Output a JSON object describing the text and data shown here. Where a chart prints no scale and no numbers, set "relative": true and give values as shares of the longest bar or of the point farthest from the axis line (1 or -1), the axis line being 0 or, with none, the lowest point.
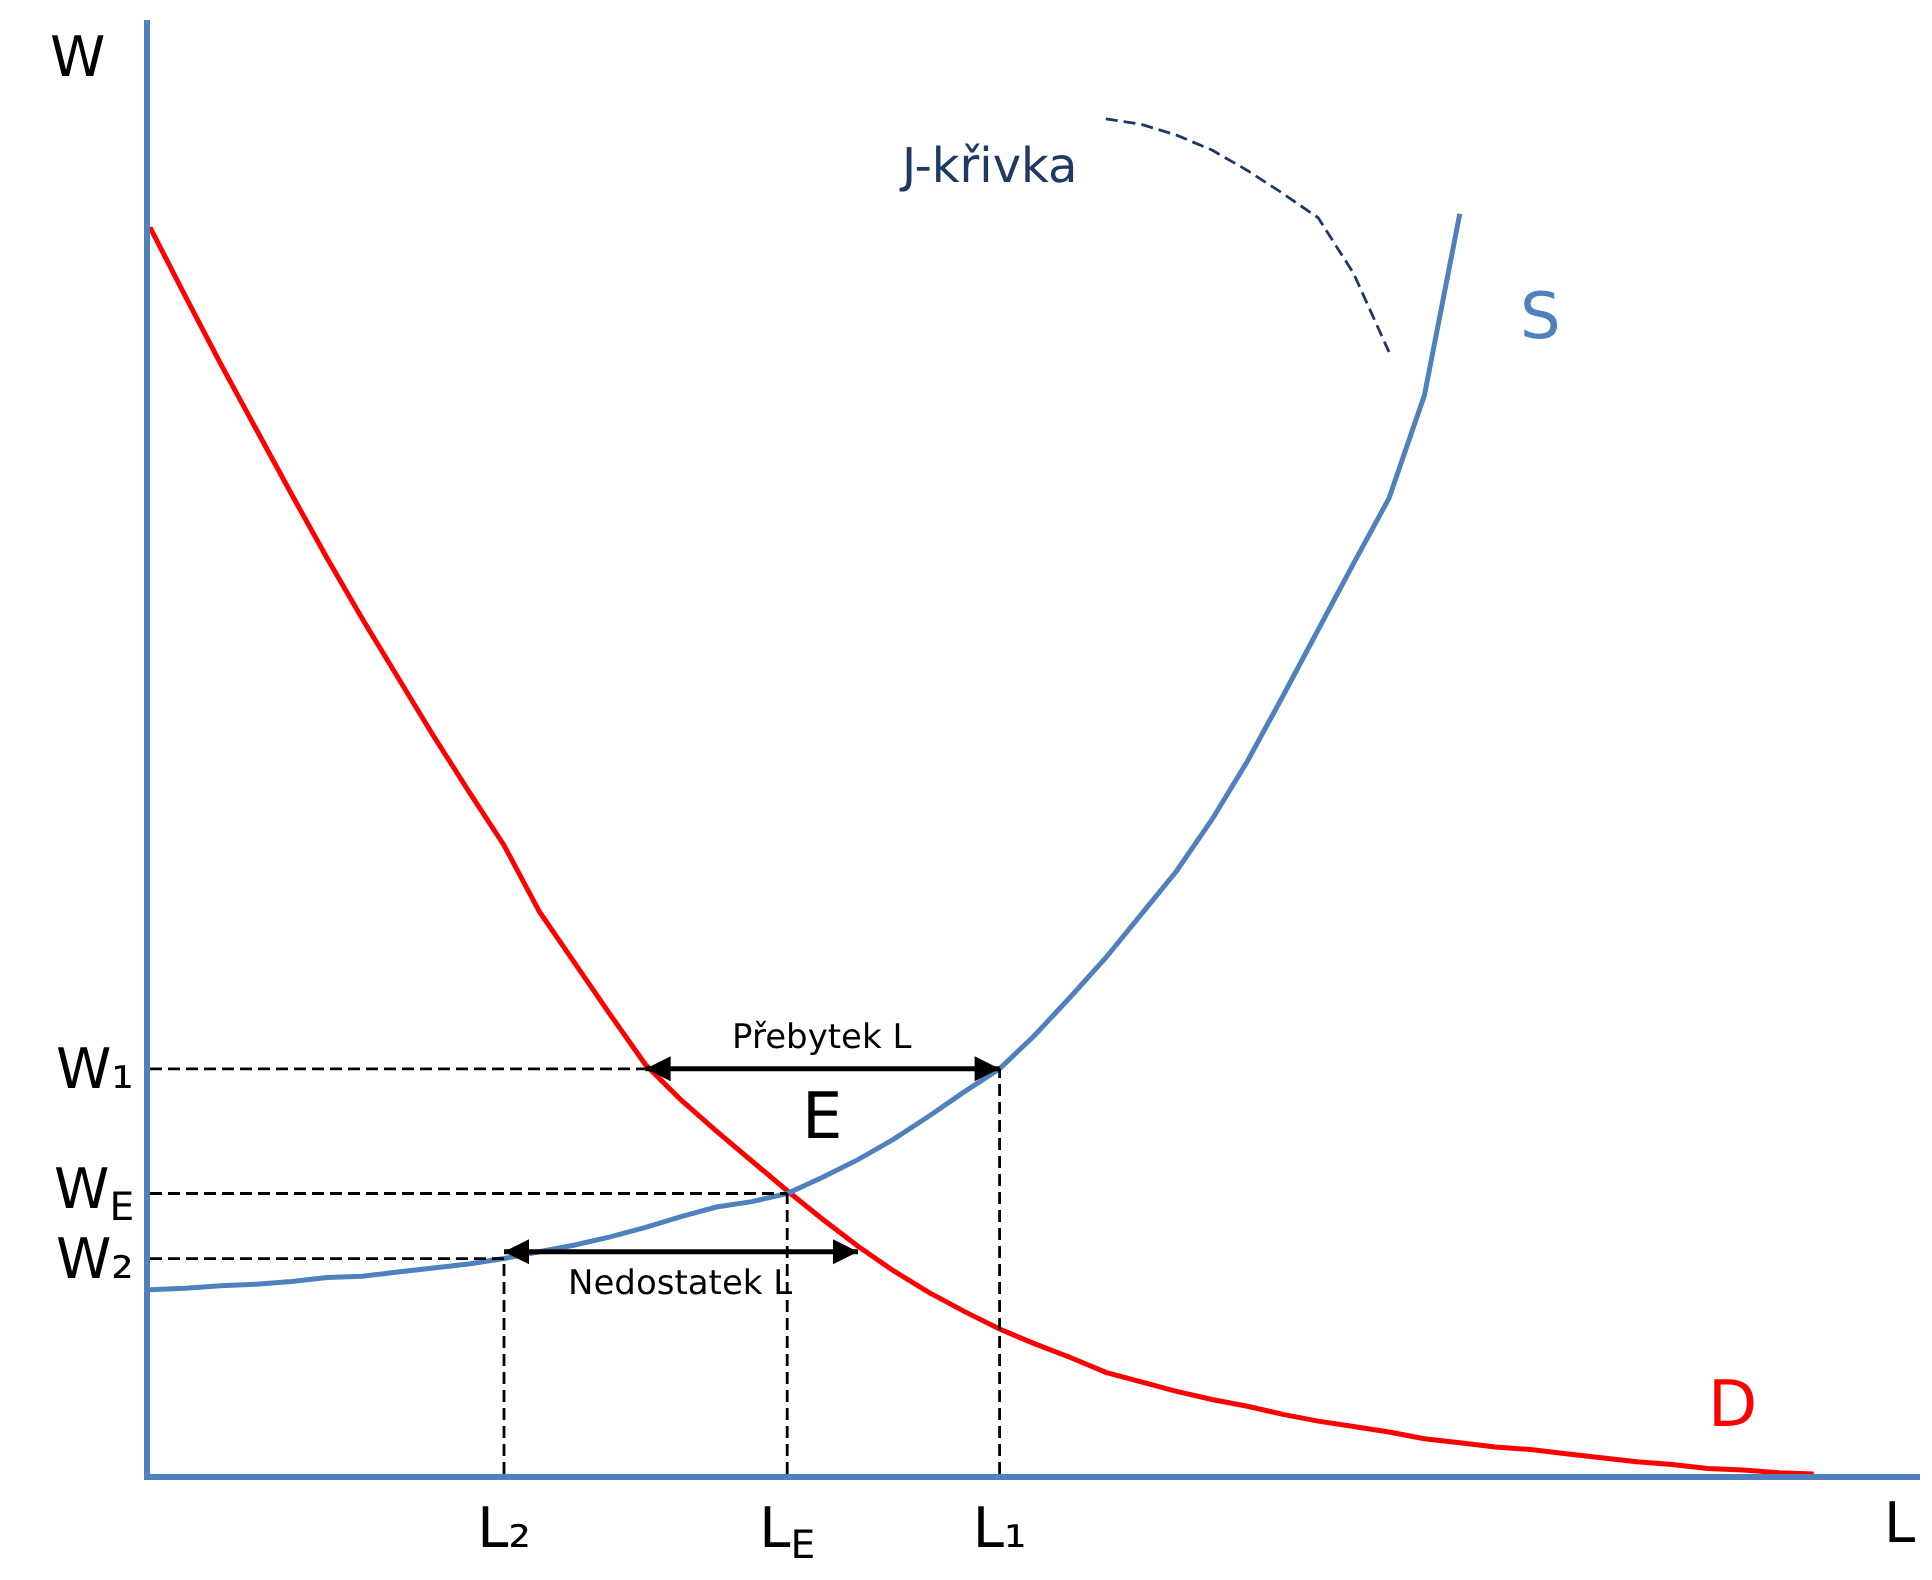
{
  "chart_data": {
    "type": "line",
    "relative": true,
    "xlabel": "L",
    "ylabel": "W",
    "legend": false,
    "categories": [
      null,
      null,
      null,
      null,
      null,
      null,
      null,
      null,
      null,
      null,
      "L₂",
      null,
      null,
      null,
      null,
      null,
      null,
      null,
      "L$_{E}$",
      null,
      null,
      null,
      null,
      null,
      "L₁",
      null,
      null,
      null,
      null,
      null,
      null,
      null,
      null,
      null,
      null,
      null,
      null,
      null,
      null,
      null,
      null,
      null,
      null,
      null,
      null,
      null,
      null,
      null,
      null,
      null,
      null
    ],
    "series": [
      {
        "name": "D",
        "color": "#ff0000",
        "values": [
          0.92,
          0.869,
          0.819,
          0.771,
          0.723,
          0.676,
          0.631,
          0.588,
          0.545,
          0.504,
          0.464,
          0.415,
          0.377,
          0.339,
          0.302,
          0.276,
          0.253,
          0.231,
          0.209,
          0.188,
          0.168,
          0.15,
          0.134,
          0.12,
          0.107,
          0.096,
          0.086,
          0.075,
          0.068,
          0.061,
          0.055,
          0.05,
          0.044,
          0.039,
          0.035,
          0.031,
          0.026,
          0.023,
          0.02,
          0.018,
          0.015,
          0.012,
          0.009,
          0.007,
          0.004,
          0.003,
          0.001,
          0,
          null,
          null,
          null
        ]
      },
      {
        "name": "S",
        "color": "#4f81bd",
        "values": [
          0.136,
          0.137,
          0.139,
          0.14,
          0.142,
          0.145,
          0.146,
          0.149,
          0.152,
          0.155,
          0.159,
          0.164,
          0.169,
          0.175,
          0.182,
          0.19,
          0.197,
          0.201,
          0.207,
          0.219,
          0.232,
          0.247,
          0.264,
          0.282,
          0.299,
          0.324,
          0.352,
          0.381,
          0.413,
          0.445,
          0.483,
          0.526,
          0.574,
          0.623,
          0.672,
          0.72,
          0.796,
          0.93,
          null,
          null,
          null,
          null,
          null,
          null,
          null,
          null,
          null,
          null,
          null,
          null,
          null
        ]
      },
      {
        "name": "J-křivka",
        "color": "#1f3864",
        "line_style": "dashed",
        "values": [
          null,
          null,
          null,
          null,
          null,
          null,
          null,
          null,
          null,
          null,
          null,
          null,
          null,
          null,
          null,
          null,
          null,
          null,
          null,
          null,
          null,
          null,
          null,
          null,
          null,
          null,
          null,
          1.0,
          0.996,
          0.988,
          0.977,
          0.962,
          0.945,
          0.927,
          0.886,
          0.828,
          null,
          null,
          null,
          null,
          null,
          null,
          null,
          null,
          null,
          null,
          null,
          null,
          null,
          null,
          null
        ]
      },
      {
        "name": "Přebytek L",
        "color": "#000000",
        "values": [
          null,
          null,
          null,
          null,
          null,
          null,
          null,
          null,
          null,
          null,
          null,
          null,
          null,
          null,
          0.299,
          0.299,
          0.299,
          0.299,
          0.299,
          0.299,
          0.299,
          0.299,
          0.299,
          0.299,
          0.299,
          null,
          null,
          null,
          null,
          null,
          null,
          null,
          null,
          null,
          null,
          null,
          null,
          null,
          null,
          null,
          null,
          null,
          null,
          null,
          null,
          null,
          null,
          null,
          null,
          null,
          null
        ]
      },
      {
        "name": "Nedostatek L",
        "color": "#000000",
        "values": [
          null,
          null,
          null,
          null,
          null,
          null,
          null,
          null,
          null,
          null,
          0.164,
          0.164,
          0.164,
          0.164,
          0.164,
          0.164,
          0.164,
          0.164,
          0.164,
          0.164,
          0.164,
          null,
          null,
          null,
          null,
          null,
          null,
          null,
          null,
          null,
          null,
          null,
          null,
          null,
          null,
          null,
          null,
          null,
          null,
          null,
          null,
          null,
          null,
          null,
          null,
          null,
          null,
          null,
          null,
          null,
          null
        ]
      }
    ],
    "ref_lines": [
      {
        "axis": "y",
        "value": 0.299,
        "label": "W₁",
        "color": "#000000",
        "line_style": "dashed"
      },
      {
        "axis": "y",
        "value": 0.207,
        "label": "W$_{E}$",
        "color": "#000000",
        "line_style": "dashed"
      },
      {
        "axis": "y",
        "value": 0.159,
        "label": "W₂",
        "color": "#000000",
        "line_style": "dashed"
      },
      {
        "axis": "x",
        "value": "L₂",
        "color": "#000000",
        "line_style": "dashed"
      },
      {
        "axis": "x",
        "value": "L$_{E}$",
        "color": "#000000",
        "line_style": "dashed"
      },
      {
        "axis": "x",
        "value": "L₁",
        "color": "#000000",
        "line_style": "dashed"
      }
    ],
    "annotations": [
      "E"
    ]
  }
}
